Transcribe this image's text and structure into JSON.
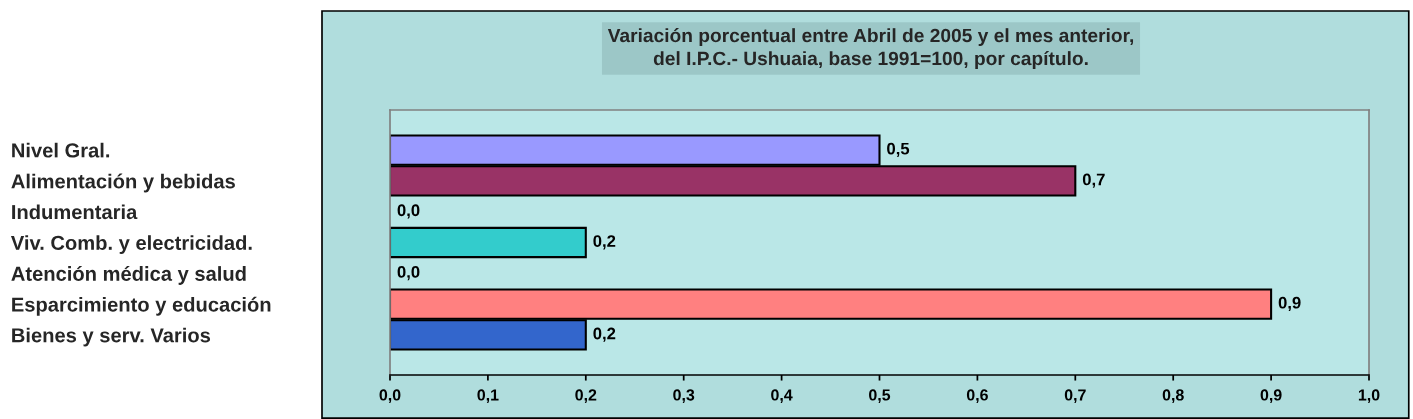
{
  "chart_data": {
    "type": "bar",
    "orientation": "horizontal",
    "title": "Variación porcentual entre Abril de 2005 y el mes anterior,\ndel I.P.C.- Ushuaia, base 1991=100, por capítulo.",
    "categories": [
      "Nivel Gral.",
      "Alimentación y bebidas",
      "Indumentaria",
      "Viv. Comb. y electricidad.",
      "Atención médica y salud",
      "Esparcimiento y educación",
      "Bienes y serv. Varios"
    ],
    "values": [
      0.5,
      0.7,
      0.0,
      0.2,
      0.0,
      0.9,
      0.2
    ],
    "colors": [
      "#9999ff",
      "#993366",
      null,
      "#33cccc",
      null,
      "#ff8080",
      "#3366cc"
    ],
    "value_labels": [
      "0,5",
      "0,7",
      "0,0",
      "0,2",
      "0,0",
      "0,9",
      "0,2"
    ],
    "xlim": [
      0,
      1
    ],
    "xticks": [
      {
        "value": 0,
        "label": "0,0"
      },
      {
        "value": 0.1,
        "label": "0,1"
      },
      {
        "value": 0.2,
        "label": "0,2"
      },
      {
        "value": 0.3,
        "label": "0,3"
      },
      {
        "value": 0.4,
        "label": "0,4"
      },
      {
        "value": 0.5,
        "label": "0,5"
      },
      {
        "value": 0.6,
        "label": "0,6"
      },
      {
        "value": 0.7,
        "label": "0,7"
      },
      {
        "value": 0.8,
        "label": "0,8"
      },
      {
        "value": 0.9,
        "label": "0,9"
      },
      {
        "value": 1.0,
        "label": "1,0"
      }
    ]
  }
}
